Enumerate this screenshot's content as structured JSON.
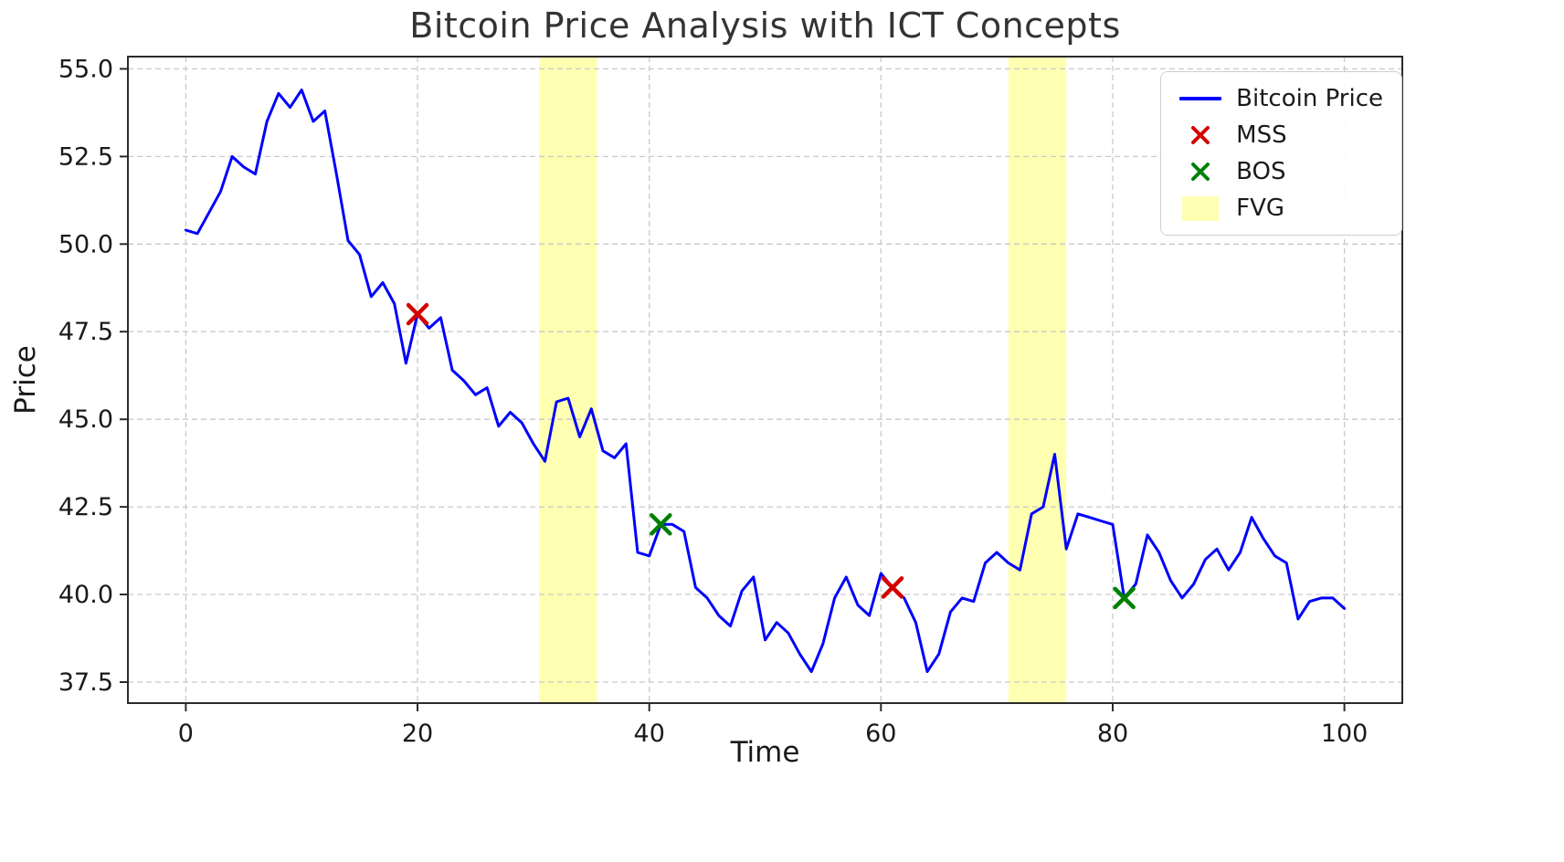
{
  "chart_data": {
    "type": "line",
    "title": "Bitcoin Price Analysis with ICT Concepts",
    "xlabel": "Time",
    "ylabel": "Price",
    "x_start": 0,
    "x_step": 1,
    "series": [
      {
        "name": "Bitcoin Price",
        "values": [
          50.4,
          50.3,
          50.9,
          51.5,
          52.5,
          52.2,
          52.0,
          53.5,
          54.3,
          53.9,
          54.4,
          53.5,
          53.8,
          52.0,
          50.1,
          49.7,
          48.5,
          48.9,
          48.3,
          46.6,
          48.0,
          47.6,
          47.9,
          46.4,
          46.1,
          45.7,
          45.9,
          44.8,
          45.2,
          44.9,
          44.3,
          43.8,
          45.5,
          45.6,
          44.5,
          45.3,
          44.1,
          43.9,
          44.3,
          41.2,
          41.1,
          42.0,
          42.0,
          41.8,
          40.2,
          39.9,
          39.4,
          39.1,
          40.1,
          40.5,
          38.7,
          39.2,
          38.9,
          38.3,
          37.8,
          38.6,
          39.9,
          40.5,
          39.7,
          39.4,
          40.6,
          40.2,
          39.9,
          39.2,
          37.8,
          38.3,
          39.5,
          39.9,
          39.8,
          40.9,
          41.2,
          40.9,
          40.7,
          42.3,
          42.5,
          44.0,
          41.3,
          42.3,
          42.2,
          42.1,
          42.0,
          39.9,
          40.3,
          41.7,
          41.2,
          40.4,
          39.9,
          40.3,
          41.0,
          41.3,
          40.7,
          41.2,
          42.2,
          41.6,
          41.1,
          40.9,
          39.3,
          39.8,
          39.9,
          39.9,
          39.6
        ]
      }
    ],
    "mss_markers": [
      {
        "x": 20,
        "y": 48.0
      },
      {
        "x": 61,
        "y": 40.2
      }
    ],
    "bos_markers": [
      {
        "x": 41,
        "y": 42.0
      },
      {
        "x": 81,
        "y": 39.9
      }
    ],
    "fvg_regions": [
      {
        "x0": 30.5,
        "x1": 35.5
      },
      {
        "x0": 71.0,
        "x1": 76.0
      }
    ],
    "xticks": {
      "values": [
        0,
        20,
        40,
        60,
        80,
        100
      ],
      "labels": [
        "0",
        "20",
        "40",
        "60",
        "80",
        "100"
      ]
    },
    "yticks": {
      "values": [
        37.5,
        40.0,
        42.5,
        45.0,
        47.5,
        50.0,
        52.5,
        55.0
      ],
      "labels": [
        "37.5",
        "40.0",
        "42.5",
        "45.0",
        "47.5",
        "50.0",
        "52.5",
        "55.0"
      ]
    },
    "x_range": [
      -5,
      105
    ],
    "y_range": [
      36.9,
      55.35
    ],
    "grid": {
      "visible": true,
      "style": "dashed"
    },
    "legend": {
      "position": "upper right",
      "items": [
        {
          "label": "Bitcoin Price",
          "type": "line",
          "color": "#0000ff"
        },
        {
          "label": "MSS",
          "type": "x",
          "color": "#d40000"
        },
        {
          "label": "BOS",
          "type": "x",
          "color": "#008000"
        },
        {
          "label": "FVG",
          "type": "patch",
          "color": "#ffffb2"
        }
      ]
    },
    "colors": {
      "price_line": "#0000ff",
      "mss": "#d40000",
      "bos": "#008000",
      "fvg_fill": "#ffff00",
      "fvg_opacity": 0.3,
      "grid": "#c9c9c9",
      "spine": "#2b2b2b",
      "text": "#1a1a1a",
      "title": "#333333"
    }
  }
}
